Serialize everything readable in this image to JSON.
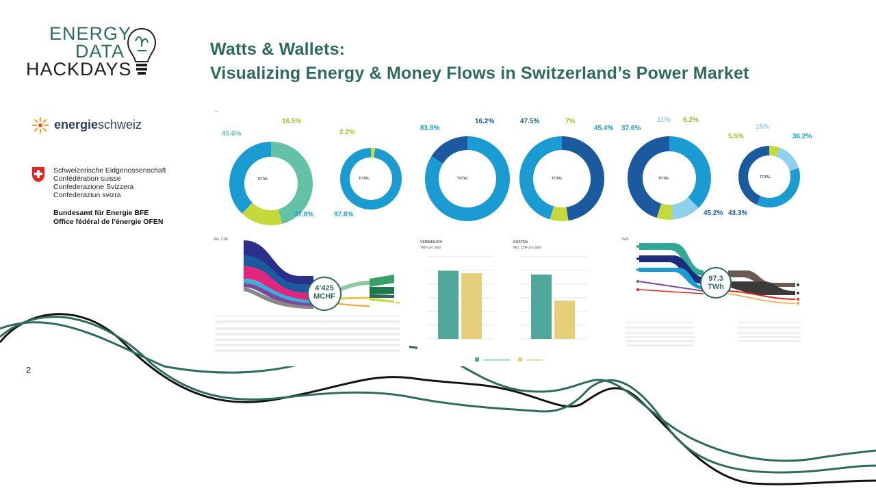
{
  "slide": {
    "title_line1": "Watts & Wallets:",
    "title_line2": "Visualizing Energy & Money Flows in Switzerland’s Power Market",
    "number": "2"
  },
  "logos": {
    "hackdays": [
      "ENERGY",
      "DATA",
      "HACKDAYS"
    ],
    "energieschweiz": {
      "part1": "energie",
      "part2": "schweiz"
    },
    "confederation": [
      "Schweizerische Eidgenossenschaft",
      "Confédération suisse",
      "Confederazione Svizzera",
      "Confederaziun svizra"
    ],
    "office": [
      "Bundesamt für Energie BFE",
      "Office fédéral de l’énergie OFEN"
    ]
  },
  "colors": {
    "teal": "#2e6b5c",
    "blue": "#1a9bd1",
    "navy": "#1c5aa0",
    "lime": "#c5d93a",
    "mint": "#63c2a6",
    "sky": "#8fd0ee"
  },
  "donuts": {
    "d1": {
      "pcts": [
        "45.6%",
        "16.5%",
        "37.8%"
      ],
      "total": "TOTAL"
    },
    "d2": {
      "pcts": [
        "2.2%",
        "97.8%"
      ],
      "total": "TOTAL"
    },
    "d3": {
      "pcts": [
        "83.8%",
        "16.2%"
      ],
      "total": "TOTAL"
    },
    "d4": {
      "pcts": [
        "47.5%",
        "7%",
        "45.4%"
      ],
      "total": "TOTAL"
    },
    "d5": {
      "pcts": [
        "37.6%",
        "11%",
        "6.2%",
        "45.2%"
      ],
      "total": "TOTAL"
    },
    "d6": {
      "pcts": [
        "5.5%",
        "15%",
        "36.2%",
        "43.3%"
      ],
      "total": "TOTAL"
    }
  },
  "sankey_money": {
    "unit": "Mio. CHF",
    "center_value": "4’425",
    "center_unit": "MCHF"
  },
  "bars_consumption": {
    "title": "VERBRAUCH",
    "unit": "TWh pro Jahr"
  },
  "bars_cost": {
    "title": "KOSTEN",
    "unit": "Mio. CHF pro Jahr"
  },
  "sankey_energy": {
    "unit": "TWh",
    "center_value": "97.3",
    "center_unit": "TWh"
  },
  "chart_data": [
    {
      "type": "bar",
      "title": "VERBRAUCH",
      "ylabel": "TWh pro Jahr",
      "categories": [
        "",
        ""
      ],
      "values": [
        29,
        28
      ],
      "ylim": [
        0,
        35
      ]
    },
    {
      "type": "bar",
      "title": "KOSTEN",
      "ylabel": "Mio. CHF pro Jahr",
      "categories": [
        "",
        ""
      ],
      "values": [
        2350,
        1400
      ],
      "ylim": [
        0,
        3000
      ]
    }
  ]
}
